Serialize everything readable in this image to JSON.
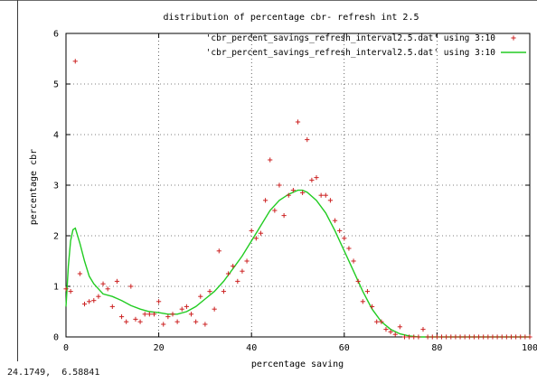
{
  "window": {
    "status_coords": "24.1749,  6.58841"
  },
  "colors": {
    "points": "#cc2222",
    "curve": "#22cc22",
    "axis": "#000000",
    "grid": "#000000"
  },
  "chart_data": {
    "type": "scatter",
    "title": "distribution of percentage cbr- refresh int 2.5",
    "xlabel": "percentage saving",
    "ylabel": "percentage cbr",
    "xlim": [
      0,
      100
    ],
    "ylim": [
      0,
      6
    ],
    "xticks": [
      0,
      20,
      40,
      60,
      80,
      100
    ],
    "yticks": [
      0,
      1,
      2,
      3,
      4,
      5,
      6
    ],
    "grid": true,
    "grid_style": "dotted",
    "legend_position": "top-right",
    "series": [
      {
        "name": "'cbr_percent_savings_refresh_interval2.5.dat' using 3:10",
        "kind": "points",
        "marker": "+",
        "points": [
          [
            0,
            0.95
          ],
          [
            1,
            0.9
          ],
          [
            2,
            5.45
          ],
          [
            3,
            1.25
          ],
          [
            4,
            0.65
          ],
          [
            5,
            0.7
          ],
          [
            6,
            0.72
          ],
          [
            7,
            0.8
          ],
          [
            8,
            1.05
          ],
          [
            9,
            0.95
          ],
          [
            10,
            0.6
          ],
          [
            11,
            1.1
          ],
          [
            12,
            0.4
          ],
          [
            13,
            0.3
          ],
          [
            14,
            1.0
          ],
          [
            15,
            0.35
          ],
          [
            16,
            0.3
          ],
          [
            17,
            0.45
          ],
          [
            18,
            0.45
          ],
          [
            19,
            0.45
          ],
          [
            20,
            0.7
          ],
          [
            21,
            0.25
          ],
          [
            22,
            0.4
          ],
          [
            23,
            0.45
          ],
          [
            24,
            0.3
          ],
          [
            25,
            0.55
          ],
          [
            26,
            0.6
          ],
          [
            27,
            0.45
          ],
          [
            28,
            0.3
          ],
          [
            29,
            0.8
          ],
          [
            30,
            0.25
          ],
          [
            31,
            0.9
          ],
          [
            32,
            0.55
          ],
          [
            33,
            1.7
          ],
          [
            34,
            0.9
          ],
          [
            35,
            1.25
          ],
          [
            36,
            1.4
          ],
          [
            37,
            1.1
          ],
          [
            38,
            1.3
          ],
          [
            39,
            1.5
          ],
          [
            40,
            2.1
          ],
          [
            41,
            1.95
          ],
          [
            42,
            2.05
          ],
          [
            43,
            2.7
          ],
          [
            44,
            3.5
          ],
          [
            45,
            2.5
          ],
          [
            46,
            3.0
          ],
          [
            47,
            2.4
          ],
          [
            48,
            2.8
          ],
          [
            49,
            2.9
          ],
          [
            50,
            4.25
          ],
          [
            51,
            2.85
          ],
          [
            52,
            3.9
          ],
          [
            53,
            3.1
          ],
          [
            54,
            3.15
          ],
          [
            55,
            2.8
          ],
          [
            56,
            2.8
          ],
          [
            57,
            2.7
          ],
          [
            58,
            2.3
          ],
          [
            59,
            2.1
          ],
          [
            60,
            1.95
          ],
          [
            61,
            1.75
          ],
          [
            62,
            1.5
          ],
          [
            63,
            1.1
          ],
          [
            64,
            0.7
          ],
          [
            65,
            0.9
          ],
          [
            66,
            0.6
          ],
          [
            67,
            0.3
          ],
          [
            68,
            0.3
          ],
          [
            69,
            0.15
          ],
          [
            70,
            0.1
          ],
          [
            71,
            0.05
          ],
          [
            72,
            0.2
          ],
          [
            73,
            0.0
          ],
          [
            74,
            0.0
          ],
          [
            75,
            0.0
          ],
          [
            76,
            0.0
          ],
          [
            77,
            0.15
          ],
          [
            78,
            0.0
          ],
          [
            79,
            0.0
          ],
          [
            80,
            0.0
          ],
          [
            81,
            0.0
          ],
          [
            82,
            0.0
          ],
          [
            83,
            0.0
          ],
          [
            84,
            0.0
          ],
          [
            85,
            0.0
          ],
          [
            86,
            0.0
          ],
          [
            87,
            0.0
          ],
          [
            88,
            0.0
          ],
          [
            89,
            0.0
          ],
          [
            90,
            0.0
          ],
          [
            91,
            0.0
          ],
          [
            92,
            0.0
          ],
          [
            93,
            0.0
          ],
          [
            94,
            0.0
          ],
          [
            95,
            0.0
          ],
          [
            96,
            0.0
          ],
          [
            97,
            0.0
          ],
          [
            98,
            0.0
          ],
          [
            99,
            0.0
          ],
          [
            100,
            0.0
          ]
        ]
      },
      {
        "name": "'cbr_percent_savings_refresh_interval2.5.dat' using 3:10",
        "kind": "line",
        "points": [
          [
            0,
            0.6
          ],
          [
            0.5,
            1.4
          ],
          [
            1,
            1.9
          ],
          [
            1.5,
            2.12
          ],
          [
            2,
            2.15
          ],
          [
            3,
            1.85
          ],
          [
            4,
            1.5
          ],
          [
            5,
            1.2
          ],
          [
            6,
            1.05
          ],
          [
            7,
            0.95
          ],
          [
            8,
            0.85
          ],
          [
            10,
            0.8
          ],
          [
            12,
            0.72
          ],
          [
            14,
            0.62
          ],
          [
            16,
            0.55
          ],
          [
            18,
            0.5
          ],
          [
            20,
            0.48
          ],
          [
            22,
            0.45
          ],
          [
            24,
            0.45
          ],
          [
            26,
            0.5
          ],
          [
            28,
            0.6
          ],
          [
            30,
            0.75
          ],
          [
            32,
            0.9
          ],
          [
            34,
            1.1
          ],
          [
            36,
            1.35
          ],
          [
            38,
            1.6
          ],
          [
            40,
            1.9
          ],
          [
            42,
            2.2
          ],
          [
            44,
            2.5
          ],
          [
            46,
            2.7
          ],
          [
            48,
            2.82
          ],
          [
            50,
            2.9
          ],
          [
            51,
            2.9
          ],
          [
            52,
            2.86
          ],
          [
            54,
            2.7
          ],
          [
            56,
            2.45
          ],
          [
            58,
            2.1
          ],
          [
            60,
            1.7
          ],
          [
            62,
            1.3
          ],
          [
            64,
            0.9
          ],
          [
            66,
            0.55
          ],
          [
            68,
            0.3
          ],
          [
            70,
            0.15
          ],
          [
            72,
            0.06
          ],
          [
            74,
            0.02
          ],
          [
            76,
            0.0
          ],
          [
            80,
            0.0
          ],
          [
            90,
            0.0
          ],
          [
            100,
            0.0
          ]
        ]
      }
    ]
  }
}
